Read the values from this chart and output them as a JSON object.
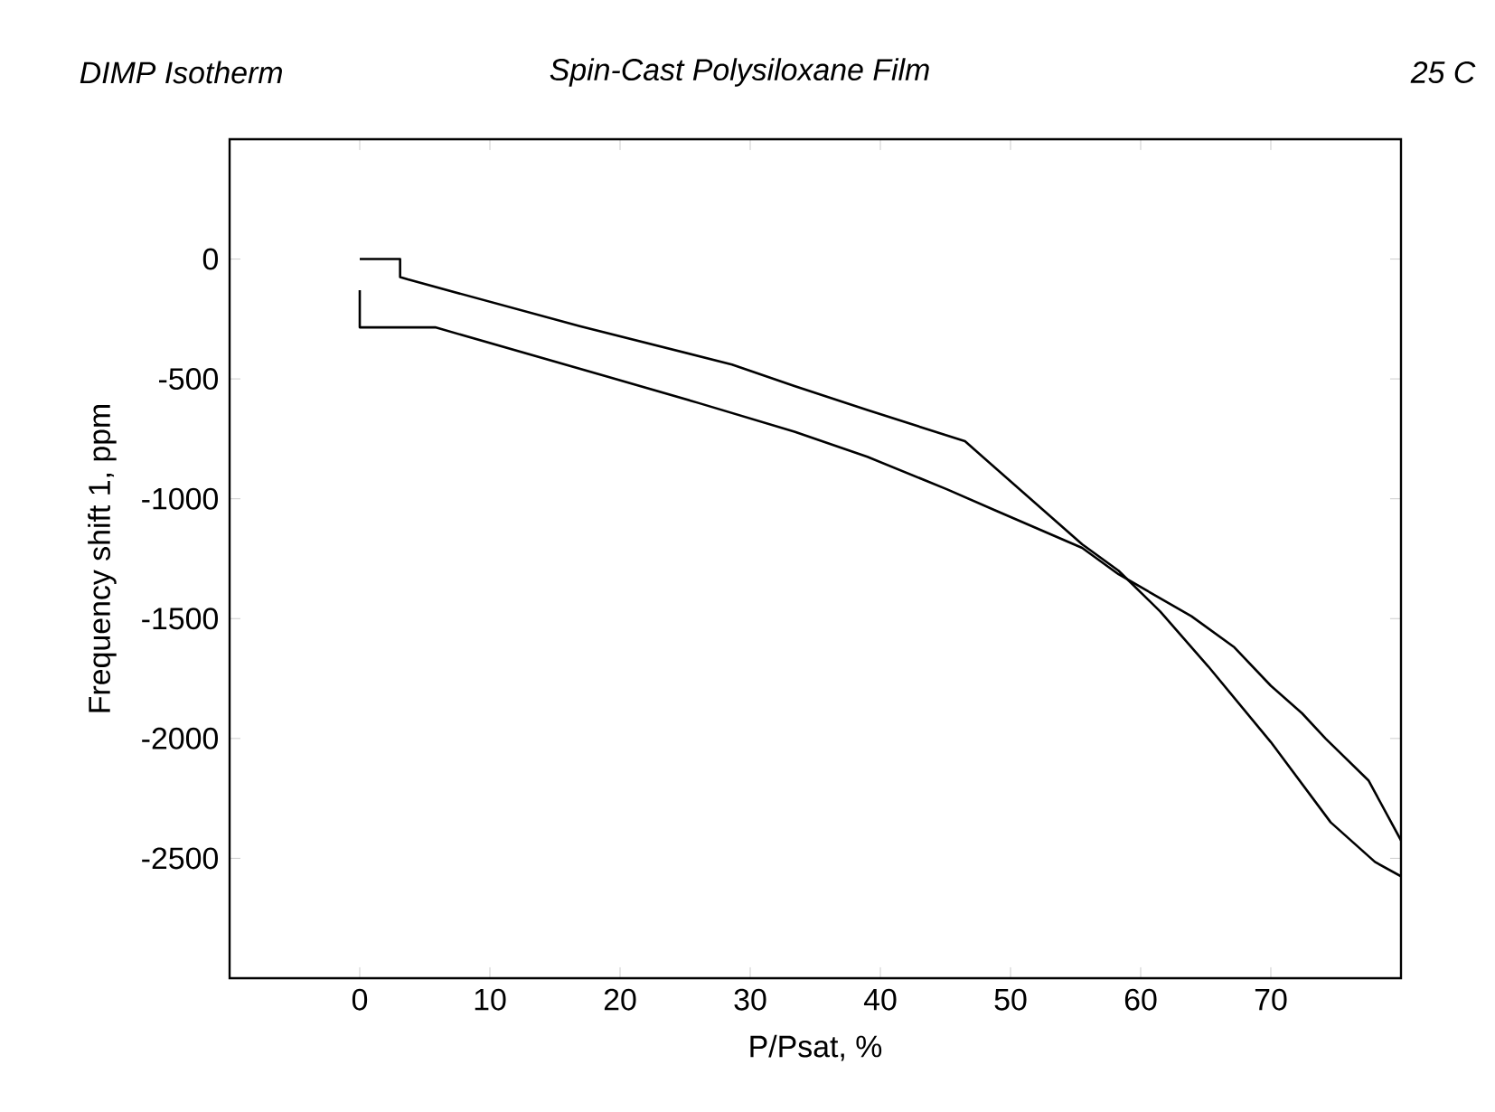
{
  "chart_data": {
    "type": "line",
    "title": "DIMP Isotherm",
    "subtitle": "Spin-Cast Polysiloxane Film",
    "annotations": [
      "25 C"
    ],
    "xlabel": "P/Psat, %",
    "ylabel": "Frequency shift 1, ppm",
    "xlim": [
      -10,
      80
    ],
    "ylim": [
      -3000,
      500
    ],
    "xticks": [
      0,
      10,
      20,
      30,
      40,
      50,
      60,
      70
    ],
    "yticks": [
      -2500,
      -2000,
      -1500,
      -1000,
      -500,
      0
    ],
    "grid": false,
    "marker": "none",
    "line_style": "solid",
    "series": [
      {
        "color": "#000000",
        "x": [
          0,
          3.1,
          3.1,
          3.7,
          16.9,
          28.6,
          33.4,
          39,
          46.5,
          55.5,
          58.3,
          61.5,
          65.2,
          70,
          74.6,
          78,
          80
        ],
        "values": [
          0,
          0,
          -75,
          -85,
          -280,
          -440,
          -530,
          -630,
          -760,
          -1190,
          -1300,
          -1470,
          -1700,
          -2015,
          -2350,
          -2515,
          -2575
        ]
      },
      {
        "color": "#000000",
        "x": [
          80,
          77.5,
          74.2,
          72.4,
          70,
          67.2,
          63.9,
          58.3,
          55.5,
          48.9,
          45.1,
          39,
          33.4,
          26,
          19,
          5.8,
          0,
          0
        ],
        "values": [
          -2425,
          -2175,
          -2000,
          -1895,
          -1780,
          -1620,
          -1490,
          -1315,
          -1205,
          -1050,
          -960,
          -825,
          -720,
          -600,
          -490,
          -285,
          -285,
          -130
        ]
      }
    ]
  }
}
